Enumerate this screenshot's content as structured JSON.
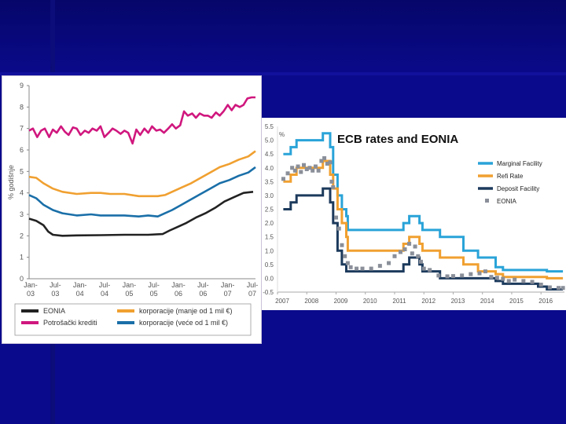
{
  "slide": {
    "background": "#0a0a8c"
  },
  "chart_data": [
    {
      "type": "line",
      "title": "",
      "ylabel": "% godišnje",
      "ylim": [
        0,
        9
      ],
      "yticks": [
        0,
        1,
        2,
        3,
        4,
        5,
        6,
        7,
        8,
        9
      ],
      "xtick_labels": [
        {
          "top": "Jan-",
          "bottom": "03"
        },
        {
          "top": "Jul-",
          "bottom": "03"
        },
        {
          "top": "Jan-",
          "bottom": "04"
        },
        {
          "top": "Jul-",
          "bottom": "04"
        },
        {
          "top": "Jan-",
          "bottom": "05"
        },
        {
          "top": "Jul-",
          "bottom": "05"
        },
        {
          "top": "Jan-",
          "bottom": "06"
        },
        {
          "top": "Jul-",
          "bottom": "06"
        },
        {
          "top": "Jan-",
          "bottom": "07"
        },
        {
          "top": "Jul-",
          "bottom": "07"
        }
      ],
      "x_range": [
        2003.0,
        2007.75
      ],
      "series": [
        {
          "name": "EONIA",
          "color": "#222222",
          "x": [
            2003.0,
            2003.15,
            2003.3,
            2003.4,
            2003.5,
            2003.7,
            2004.0,
            2004.5,
            2005.0,
            2005.5,
            2005.8,
            2005.95,
            2006.1,
            2006.3,
            2006.5,
            2006.7,
            2006.9,
            2007.1,
            2007.3,
            2007.5,
            2007.7
          ],
          "y": [
            2.8,
            2.7,
            2.5,
            2.2,
            2.05,
            2.0,
            2.02,
            2.03,
            2.05,
            2.05,
            2.08,
            2.25,
            2.4,
            2.6,
            2.85,
            3.05,
            3.3,
            3.6,
            3.8,
            4.0,
            4.05
          ]
        },
        {
          "name": "Potrošački krediti",
          "color": "#d0177e",
          "x": [
            2003.0,
            2003.08,
            2003.17,
            2003.25,
            2003.33,
            2003.42,
            2003.5,
            2003.58,
            2003.67,
            2003.75,
            2003.83,
            2003.92,
            2004.0,
            2004.08,
            2004.17,
            2004.25,
            2004.33,
            2004.42,
            2004.5,
            2004.58,
            2004.67,
            2004.75,
            2004.83,
            2004.92,
            2005.0,
            2005.08,
            2005.17,
            2005.25,
            2005.33,
            2005.42,
            2005.5,
            2005.58,
            2005.67,
            2005.75,
            2005.83,
            2005.92,
            2006.0,
            2006.08,
            2006.17,
            2006.25,
            2006.33,
            2006.42,
            2006.5,
            2006.58,
            2006.67,
            2006.75,
            2006.83,
            2006.92,
            2007.0,
            2007.08,
            2007.17,
            2007.25,
            2007.33,
            2007.42,
            2007.5,
            2007.58,
            2007.67,
            2007.75
          ],
          "y": [
            6.9,
            7.0,
            6.6,
            6.9,
            7.0,
            6.6,
            6.95,
            6.8,
            7.1,
            6.85,
            6.7,
            7.05,
            7.0,
            6.7,
            6.9,
            6.8,
            7.0,
            6.9,
            7.1,
            6.6,
            6.8,
            7.0,
            6.9,
            6.75,
            6.9,
            6.8,
            6.3,
            6.95,
            6.7,
            7.0,
            6.8,
            7.1,
            6.9,
            6.95,
            6.8,
            7.0,
            7.2,
            7.0,
            7.15,
            7.8,
            7.6,
            7.7,
            7.5,
            7.7,
            7.6,
            7.6,
            7.5,
            7.75,
            7.6,
            7.8,
            8.1,
            7.85,
            8.1,
            8.0,
            8.1,
            8.4,
            8.45,
            8.45
          ]
        },
        {
          "name": "korporacije (manje od 1 mil €)",
          "color": "#f0a030",
          "x": [
            2003.0,
            2003.15,
            2003.3,
            2003.5,
            2003.7,
            2004.0,
            2004.3,
            2004.5,
            2004.7,
            2005.0,
            2005.3,
            2005.5,
            2005.7,
            2005.85,
            2006.0,
            2006.2,
            2006.4,
            2006.6,
            2006.8,
            2007.0,
            2007.2,
            2007.4,
            2007.6,
            2007.75
          ],
          "y": [
            4.75,
            4.7,
            4.45,
            4.2,
            4.05,
            3.95,
            4.0,
            4.0,
            3.95,
            3.95,
            3.85,
            3.85,
            3.85,
            3.9,
            4.05,
            4.25,
            4.45,
            4.7,
            4.95,
            5.2,
            5.35,
            5.55,
            5.7,
            5.95
          ]
        },
        {
          "name": "korporacije (veće od 1 mil €)",
          "color": "#1a6fa8",
          "x": [
            2003.0,
            2003.15,
            2003.3,
            2003.5,
            2003.7,
            2004.0,
            2004.3,
            2004.5,
            2004.7,
            2005.0,
            2005.3,
            2005.5,
            2005.7,
            2005.85,
            2006.0,
            2006.2,
            2006.4,
            2006.6,
            2006.8,
            2007.0,
            2007.2,
            2007.4,
            2007.6,
            2007.75
          ],
          "y": [
            3.9,
            3.75,
            3.45,
            3.2,
            3.05,
            2.95,
            3.0,
            2.95,
            2.95,
            2.95,
            2.9,
            2.95,
            2.9,
            3.05,
            3.2,
            3.45,
            3.7,
            3.95,
            4.2,
            4.45,
            4.6,
            4.8,
            4.95,
            5.2
          ]
        }
      ],
      "legend": [
        {
          "label": "EONIA",
          "color": "#222222"
        },
        {
          "label": "korporacije (manje od 1 mil €)",
          "color": "#f0a030"
        },
        {
          "label": "Potrošački krediti",
          "color": "#d0177e"
        },
        {
          "label": "korporacije (veće od 1 mil €)",
          "color": "#1a6fa8"
        }
      ]
    },
    {
      "type": "line",
      "title": "ECB rates and EONIA",
      "ylabel": "%",
      "ylim": [
        -0.5,
        5.5
      ],
      "ytick_labels": [
        "5.5",
        "5.0",
        "4.5",
        "4.0",
        "3.5",
        "3.0",
        "2.5",
        "2.0",
        "1.5",
        "1.0",
        "0.5",
        "0.0",
        "-0.5"
      ],
      "ytick_values": [
        5.5,
        5.0,
        4.5,
        4.0,
        3.5,
        3.0,
        2.5,
        2.0,
        1.5,
        1.0,
        0.5,
        0.0,
        -0.5
      ],
      "xtick_labels": [
        "2007",
        "2008",
        "2009",
        "2010",
        "2011",
        "2012",
        "2013",
        "2014",
        "2015",
        "2016"
      ],
      "xtick_values": [
        2007,
        2008,
        2009,
        2010,
        2011,
        2012,
        2013,
        2014,
        2015,
        2016
      ],
      "x_range": [
        2007.0,
        2016.8
      ],
      "series": [
        {
          "name": "Marginal Facility",
          "color": "#29a3d8",
          "step": true,
          "x": [
            2007.2,
            2007.45,
            2007.65,
            2008.55,
            2008.8,
            2008.9,
            2009.05,
            2009.2,
            2009.35,
            2009.4,
            2011.3,
            2011.5,
            2011.85,
            2011.95,
            2012.55,
            2013.35,
            2013.85,
            2014.45,
            2014.7,
            2015.9,
            2016.2,
            2016.75
          ],
          "y": [
            4.5,
            4.75,
            5.0,
            5.25,
            4.75,
            3.75,
            3.0,
            2.5,
            2.25,
            1.75,
            2.0,
            2.25,
            2.0,
            1.75,
            1.5,
            1.0,
            0.75,
            0.4,
            0.3,
            0.3,
            0.25,
            0.25
          ]
        },
        {
          "name": "Refi Rate",
          "color": "#f0a030",
          "step": true,
          "x": [
            2007.2,
            2007.45,
            2007.65,
            2008.55,
            2008.8,
            2008.9,
            2009.05,
            2009.2,
            2009.35,
            2009.4,
            2011.3,
            2011.5,
            2011.85,
            2011.95,
            2012.55,
            2013.35,
            2013.85,
            2014.45,
            2014.7,
            2016.2,
            2016.75
          ],
          "y": [
            3.5,
            3.75,
            4.0,
            4.25,
            3.75,
            3.25,
            2.5,
            2.0,
            1.5,
            1.0,
            1.25,
            1.5,
            1.25,
            1.0,
            0.75,
            0.5,
            0.25,
            0.15,
            0.05,
            0.0,
            0.0
          ]
        },
        {
          "name": "Deposit Facility",
          "color": "#1c3a5c",
          "step": true,
          "x": [
            2007.2,
            2007.45,
            2007.65,
            2008.55,
            2008.8,
            2008.9,
            2009.05,
            2009.2,
            2009.35,
            2011.3,
            2011.5,
            2011.85,
            2011.95,
            2012.55,
            2014.45,
            2014.7,
            2015.9,
            2016.2,
            2016.75
          ],
          "y": [
            2.5,
            2.75,
            3.0,
            3.25,
            2.75,
            2.0,
            1.0,
            0.5,
            0.25,
            0.5,
            0.75,
            0.5,
            0.25,
            0.0,
            -0.1,
            -0.2,
            -0.3,
            -0.4,
            -0.4
          ]
        },
        {
          "name": "EONIA",
          "color": "#8a8f99",
          "markers": true,
          "x": [
            2007.2,
            2007.35,
            2007.5,
            2007.6,
            2007.7,
            2007.8,
            2007.9,
            2008.0,
            2008.1,
            2008.2,
            2008.3,
            2008.4,
            2008.5,
            2008.6,
            2008.7,
            2008.8,
            2008.85,
            2008.9,
            2009.0,
            2009.1,
            2009.2,
            2009.3,
            2009.4,
            2009.5,
            2009.7,
            2009.9,
            2010.2,
            2010.5,
            2010.8,
            2011.0,
            2011.2,
            2011.35,
            2011.5,
            2011.6,
            2011.7,
            2011.8,
            2011.9,
            2012.0,
            2012.2,
            2012.5,
            2012.8,
            2013.0,
            2013.3,
            2013.6,
            2013.9,
            2014.1,
            2014.3,
            2014.5,
            2014.7,
            2014.9,
            2015.1,
            2015.4,
            2015.7,
            2016.0,
            2016.3,
            2016.6,
            2016.75
          ],
          "y": [
            3.6,
            3.8,
            4.0,
            3.9,
            4.05,
            3.85,
            4.1,
            3.95,
            4.0,
            3.9,
            4.05,
            3.9,
            4.25,
            4.35,
            4.15,
            4.2,
            3.5,
            3.3,
            2.2,
            1.8,
            1.2,
            0.8,
            0.55,
            0.4,
            0.35,
            0.35,
            0.35,
            0.45,
            0.55,
            0.8,
            0.95,
            1.05,
            1.25,
            0.9,
            1.15,
            0.8,
            0.6,
            0.35,
            0.3,
            0.1,
            0.07,
            0.08,
            0.1,
            0.15,
            0.18,
            0.25,
            0.05,
            0.02,
            -0.02,
            -0.1,
            -0.05,
            -0.1,
            -0.13,
            -0.23,
            -0.33,
            -0.35,
            -0.35
          ]
        }
      ],
      "legend": [
        {
          "label": "Marginal Facility",
          "color": "#29a3d8",
          "style": "line"
        },
        {
          "label": "Refi Rate",
          "color": "#f0a030",
          "style": "line"
        },
        {
          "label": "Deposit Facility",
          "color": "#1c3a5c",
          "style": "line"
        },
        {
          "label": "EONIA",
          "color": "#8a8f99",
          "style": "marker"
        }
      ]
    }
  ]
}
